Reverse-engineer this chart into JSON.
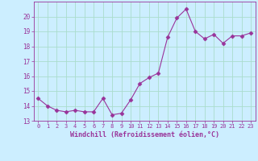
{
  "x": [
    0,
    1,
    2,
    3,
    4,
    5,
    6,
    7,
    8,
    9,
    10,
    11,
    12,
    13,
    14,
    15,
    16,
    17,
    18,
    19,
    20,
    21,
    22,
    23
  ],
  "y": [
    14.5,
    14.0,
    13.7,
    13.6,
    13.7,
    13.6,
    13.6,
    14.5,
    13.4,
    13.5,
    14.4,
    15.5,
    15.9,
    16.2,
    18.6,
    19.9,
    20.5,
    19.0,
    18.5,
    18.8,
    18.2,
    18.7,
    18.7,
    18.9
  ],
  "line_color": "#993399",
  "marker": "D",
  "marker_size": 2.5,
  "bg_color": "#cceeff",
  "grid_color": "#aaddcc",
  "xlabel": "Windchill (Refroidissement éolien,°C)",
  "xlabel_color": "#993399",
  "tick_color": "#993399",
  "ylim": [
    13,
    21
  ],
  "xlim": [
    -0.5,
    23.5
  ],
  "yticks": [
    13,
    14,
    15,
    16,
    17,
    18,
    19,
    20
  ],
  "xticks": [
    0,
    1,
    2,
    3,
    4,
    5,
    6,
    7,
    8,
    9,
    10,
    11,
    12,
    13,
    14,
    15,
    16,
    17,
    18,
    19,
    20,
    21,
    22,
    23
  ]
}
